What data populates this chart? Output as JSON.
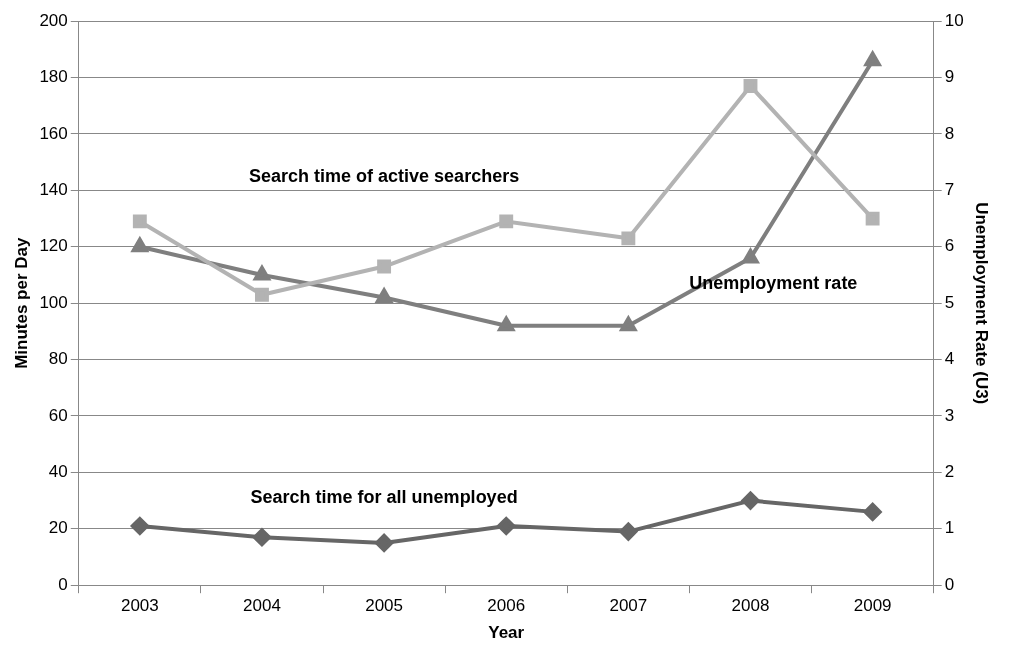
{
  "chart_data": {
    "type": "line",
    "xlabel": "Year",
    "ylabel": "Minutes per Day",
    "y2label": "Unemployment Rate (U3)",
    "categories": [
      "2003",
      "2004",
      "2005",
      "2006",
      "2007",
      "2008",
      "2009"
    ],
    "series": [
      {
        "name": "Search time of active searchers",
        "color": "#b3b3b3",
        "marker": "square",
        "values": [
          129,
          103,
          113,
          129,
          123,
          177,
          130
        ]
      },
      {
        "name": "Unemployment rate",
        "color": "#7f7f7f",
        "marker": "triangle",
        "axis": "y2",
        "values": [
          6.0,
          5.5,
          5.1,
          4.6,
          4.6,
          5.8,
          9.3
        ]
      },
      {
        "name": "Search time for all unemployed",
        "color": "#666666",
        "marker": "diamond",
        "values": [
          21,
          17,
          15,
          21,
          19,
          30,
          26
        ]
      }
    ],
    "ylim": [
      0,
      200
    ],
    "yticks": [
      0,
      20,
      40,
      60,
      80,
      100,
      120,
      140,
      160,
      180,
      200
    ],
    "y2lim": [
      0,
      10
    ],
    "y2ticks": [
      0,
      1,
      2,
      3,
      4,
      5,
      6,
      7,
      8,
      9,
      10
    ],
    "grid": "y",
    "legend": false,
    "line_style": "solid"
  }
}
